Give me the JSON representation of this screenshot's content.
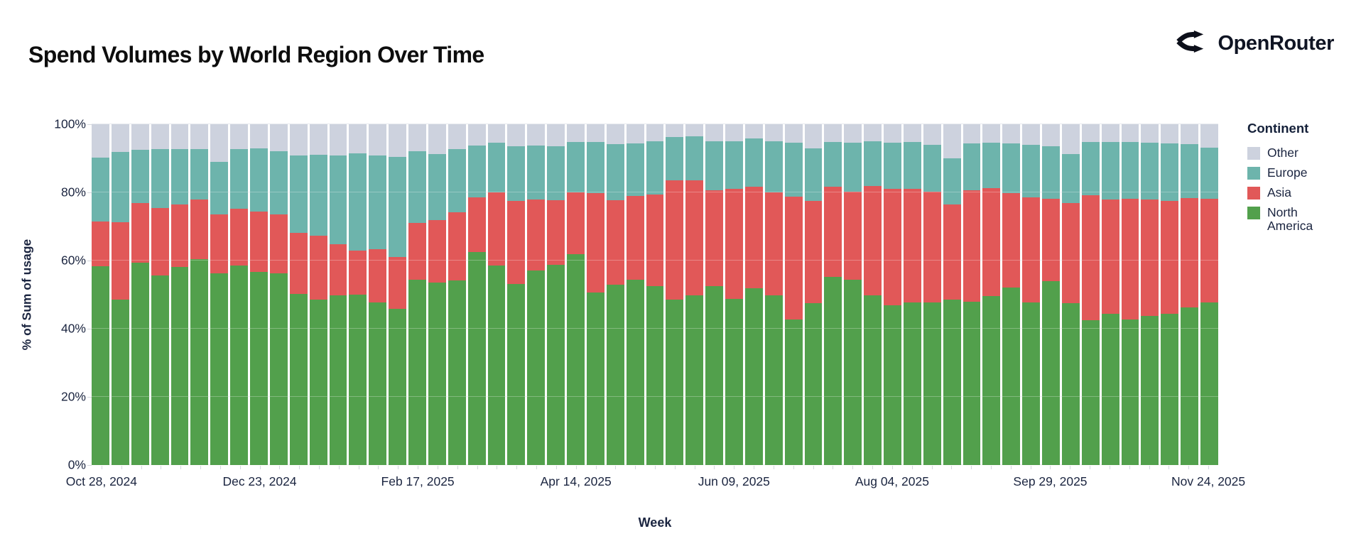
{
  "header": {
    "title": "Spend Volumes by World Region Over Time",
    "brand": "OpenRouter"
  },
  "chart_data": {
    "type": "bar",
    "stacked": true,
    "percent_of_total": true,
    "title": "Spend Volumes by World Region Over Time",
    "xlabel": "Week",
    "ylabel": "% of Sum of usage",
    "ylim": [
      0,
      100
    ],
    "grid": "horizontal",
    "y_ticks": [
      "0%",
      "20%",
      "40%",
      "60%",
      "80%",
      "100%"
    ],
    "x_tick_indices": [
      0,
      8,
      16,
      24,
      32,
      40,
      48,
      56
    ],
    "x_tick_labels": [
      "Oct 28, 2024",
      "Dec 23, 2024",
      "Feb 17, 2025",
      "Apr 14, 2025",
      "Jun 09, 2025",
      "Aug 04, 2025",
      "Sep 29, 2025",
      "Nov 24, 2025"
    ],
    "categories": [
      "Oct 28, 2024",
      "Nov 04, 2024",
      "Nov 11, 2024",
      "Nov 18, 2024",
      "Nov 25, 2024",
      "Dec 02, 2024",
      "Dec 09, 2024",
      "Dec 16, 2024",
      "Dec 23, 2024",
      "Dec 30, 2024",
      "Jan 06, 2025",
      "Jan 13, 2025",
      "Jan 20, 2025",
      "Jan 27, 2025",
      "Feb 03, 2025",
      "Feb 10, 2025",
      "Feb 17, 2025",
      "Feb 24, 2025",
      "Mar 03, 2025",
      "Mar 10, 2025",
      "Mar 17, 2025",
      "Mar 24, 2025",
      "Mar 31, 2025",
      "Apr 07, 2025",
      "Apr 14, 2025",
      "Apr 21, 2025",
      "Apr 28, 2025",
      "May 05, 2025",
      "May 12, 2025",
      "May 19, 2025",
      "May 26, 2025",
      "Jun 02, 2025",
      "Jun 09, 2025",
      "Jun 16, 2025",
      "Jun 23, 2025",
      "Jun 30, 2025",
      "Jul 07, 2025",
      "Jul 14, 2025",
      "Jul 21, 2025",
      "Jul 28, 2025",
      "Aug 04, 2025",
      "Aug 11, 2025",
      "Aug 18, 2025",
      "Aug 25, 2025",
      "Sep 01, 2025",
      "Sep 08, 2025",
      "Sep 15, 2025",
      "Sep 22, 2025",
      "Sep 29, 2025",
      "Oct 06, 2025",
      "Oct 13, 2025",
      "Oct 20, 2025",
      "Oct 27, 2025",
      "Nov 03, 2025",
      "Nov 10, 2025",
      "Nov 17, 2025",
      "Nov 24, 2025"
    ],
    "series": [
      {
        "name": "North America",
        "color": "#52A04C",
        "values": [
          58.3,
          48.5,
          59.4,
          55.6,
          58.2,
          60.4,
          56.3,
          58.5,
          56.6,
          56.3,
          50.3,
          48.6,
          49.7,
          50.0,
          47.7,
          45.8,
          54.3,
          53.5,
          54.2,
          62.5,
          58.5,
          53.1,
          57.1,
          58.7,
          61.8,
          50.7,
          52.9,
          54.3,
          52.6,
          48.6,
          49.8,
          52.6,
          48.8,
          51.9,
          49.7,
          42.7,
          47.6,
          55.3,
          54.3,
          49.7,
          46.9,
          47.7,
          47.7,
          48.5,
          47.9,
          49.5,
          52.1,
          47.7,
          54.0,
          47.4,
          42.6,
          44.4,
          42.8,
          43.8,
          44.4,
          46.3,
          47.6
        ]
      },
      {
        "name": "Asia",
        "color": "#E15858",
        "values": [
          13.2,
          22.8,
          17.5,
          19.9,
          18.3,
          17.6,
          17.2,
          16.8,
          17.8,
          17.3,
          17.9,
          18.6,
          15.0,
          13.0,
          15.7,
          15.2,
          16.7,
          18.4,
          19.9,
          16.1,
          21.6,
          24.3,
          20.9,
          19.1,
          18.1,
          29.0,
          24.9,
          24.7,
          26.7,
          34.9,
          33.7,
          28.0,
          32.2,
          29.7,
          30.4,
          36.1,
          30.0,
          26.3,
          25.9,
          32.2,
          34.1,
          33.4,
          32.5,
          27.9,
          32.8,
          31.8,
          27.6,
          30.8,
          24.1,
          29.5,
          36.6,
          33.5,
          35.3,
          34.2,
          33.0,
          32.0,
          30.5
        ]
      },
      {
        "name": "Europe",
        "color": "#6DB4AC",
        "values": [
          18.8,
          20.5,
          15.6,
          17.2,
          16.2,
          14.7,
          15.5,
          17.5,
          18.5,
          18.4,
          22.6,
          23.8,
          26.1,
          28.5,
          27.4,
          29.4,
          21.0,
          19.4,
          18.6,
          15.2,
          14.5,
          16.1,
          15.8,
          15.7,
          14.9,
          15.1,
          16.4,
          15.4,
          15.6,
          12.8,
          13.0,
          14.5,
          14.1,
          14.2,
          14.8,
          15.8,
          15.3,
          13.2,
          14.4,
          13.1,
          13.6,
          13.7,
          13.8,
          13.7,
          13.7,
          13.3,
          14.7,
          15.4,
          15.4,
          14.3,
          15.6,
          16.9,
          16.7,
          16.6,
          17.0,
          15.9,
          15.1
        ]
      },
      {
        "name": "Other",
        "color": "#CDD2DE",
        "values": [
          9.7,
          8.2,
          7.5,
          7.3,
          7.3,
          7.3,
          11.0,
          7.2,
          7.1,
          8.0,
          9.2,
          9.0,
          9.2,
          8.5,
          9.2,
          9.6,
          8.0,
          8.7,
          7.3,
          6.2,
          5.4,
          6.5,
          6.2,
          6.5,
          5.2,
          5.2,
          5.8,
          5.6,
          5.1,
          3.7,
          3.5,
          4.9,
          4.9,
          4.2,
          5.1,
          5.4,
          7.1,
          5.2,
          5.4,
          5.0,
          5.4,
          5.2,
          6.0,
          9.9,
          5.6,
          5.4,
          5.6,
          6.1,
          6.5,
          8.8,
          5.2,
          5.2,
          5.2,
          5.4,
          5.6,
          5.8,
          6.8
        ]
      }
    ],
    "legend": {
      "title": "Continent",
      "position": "right",
      "entries_top_to_bottom": [
        "Other",
        "Europe",
        "Asia",
        "North America"
      ]
    }
  }
}
